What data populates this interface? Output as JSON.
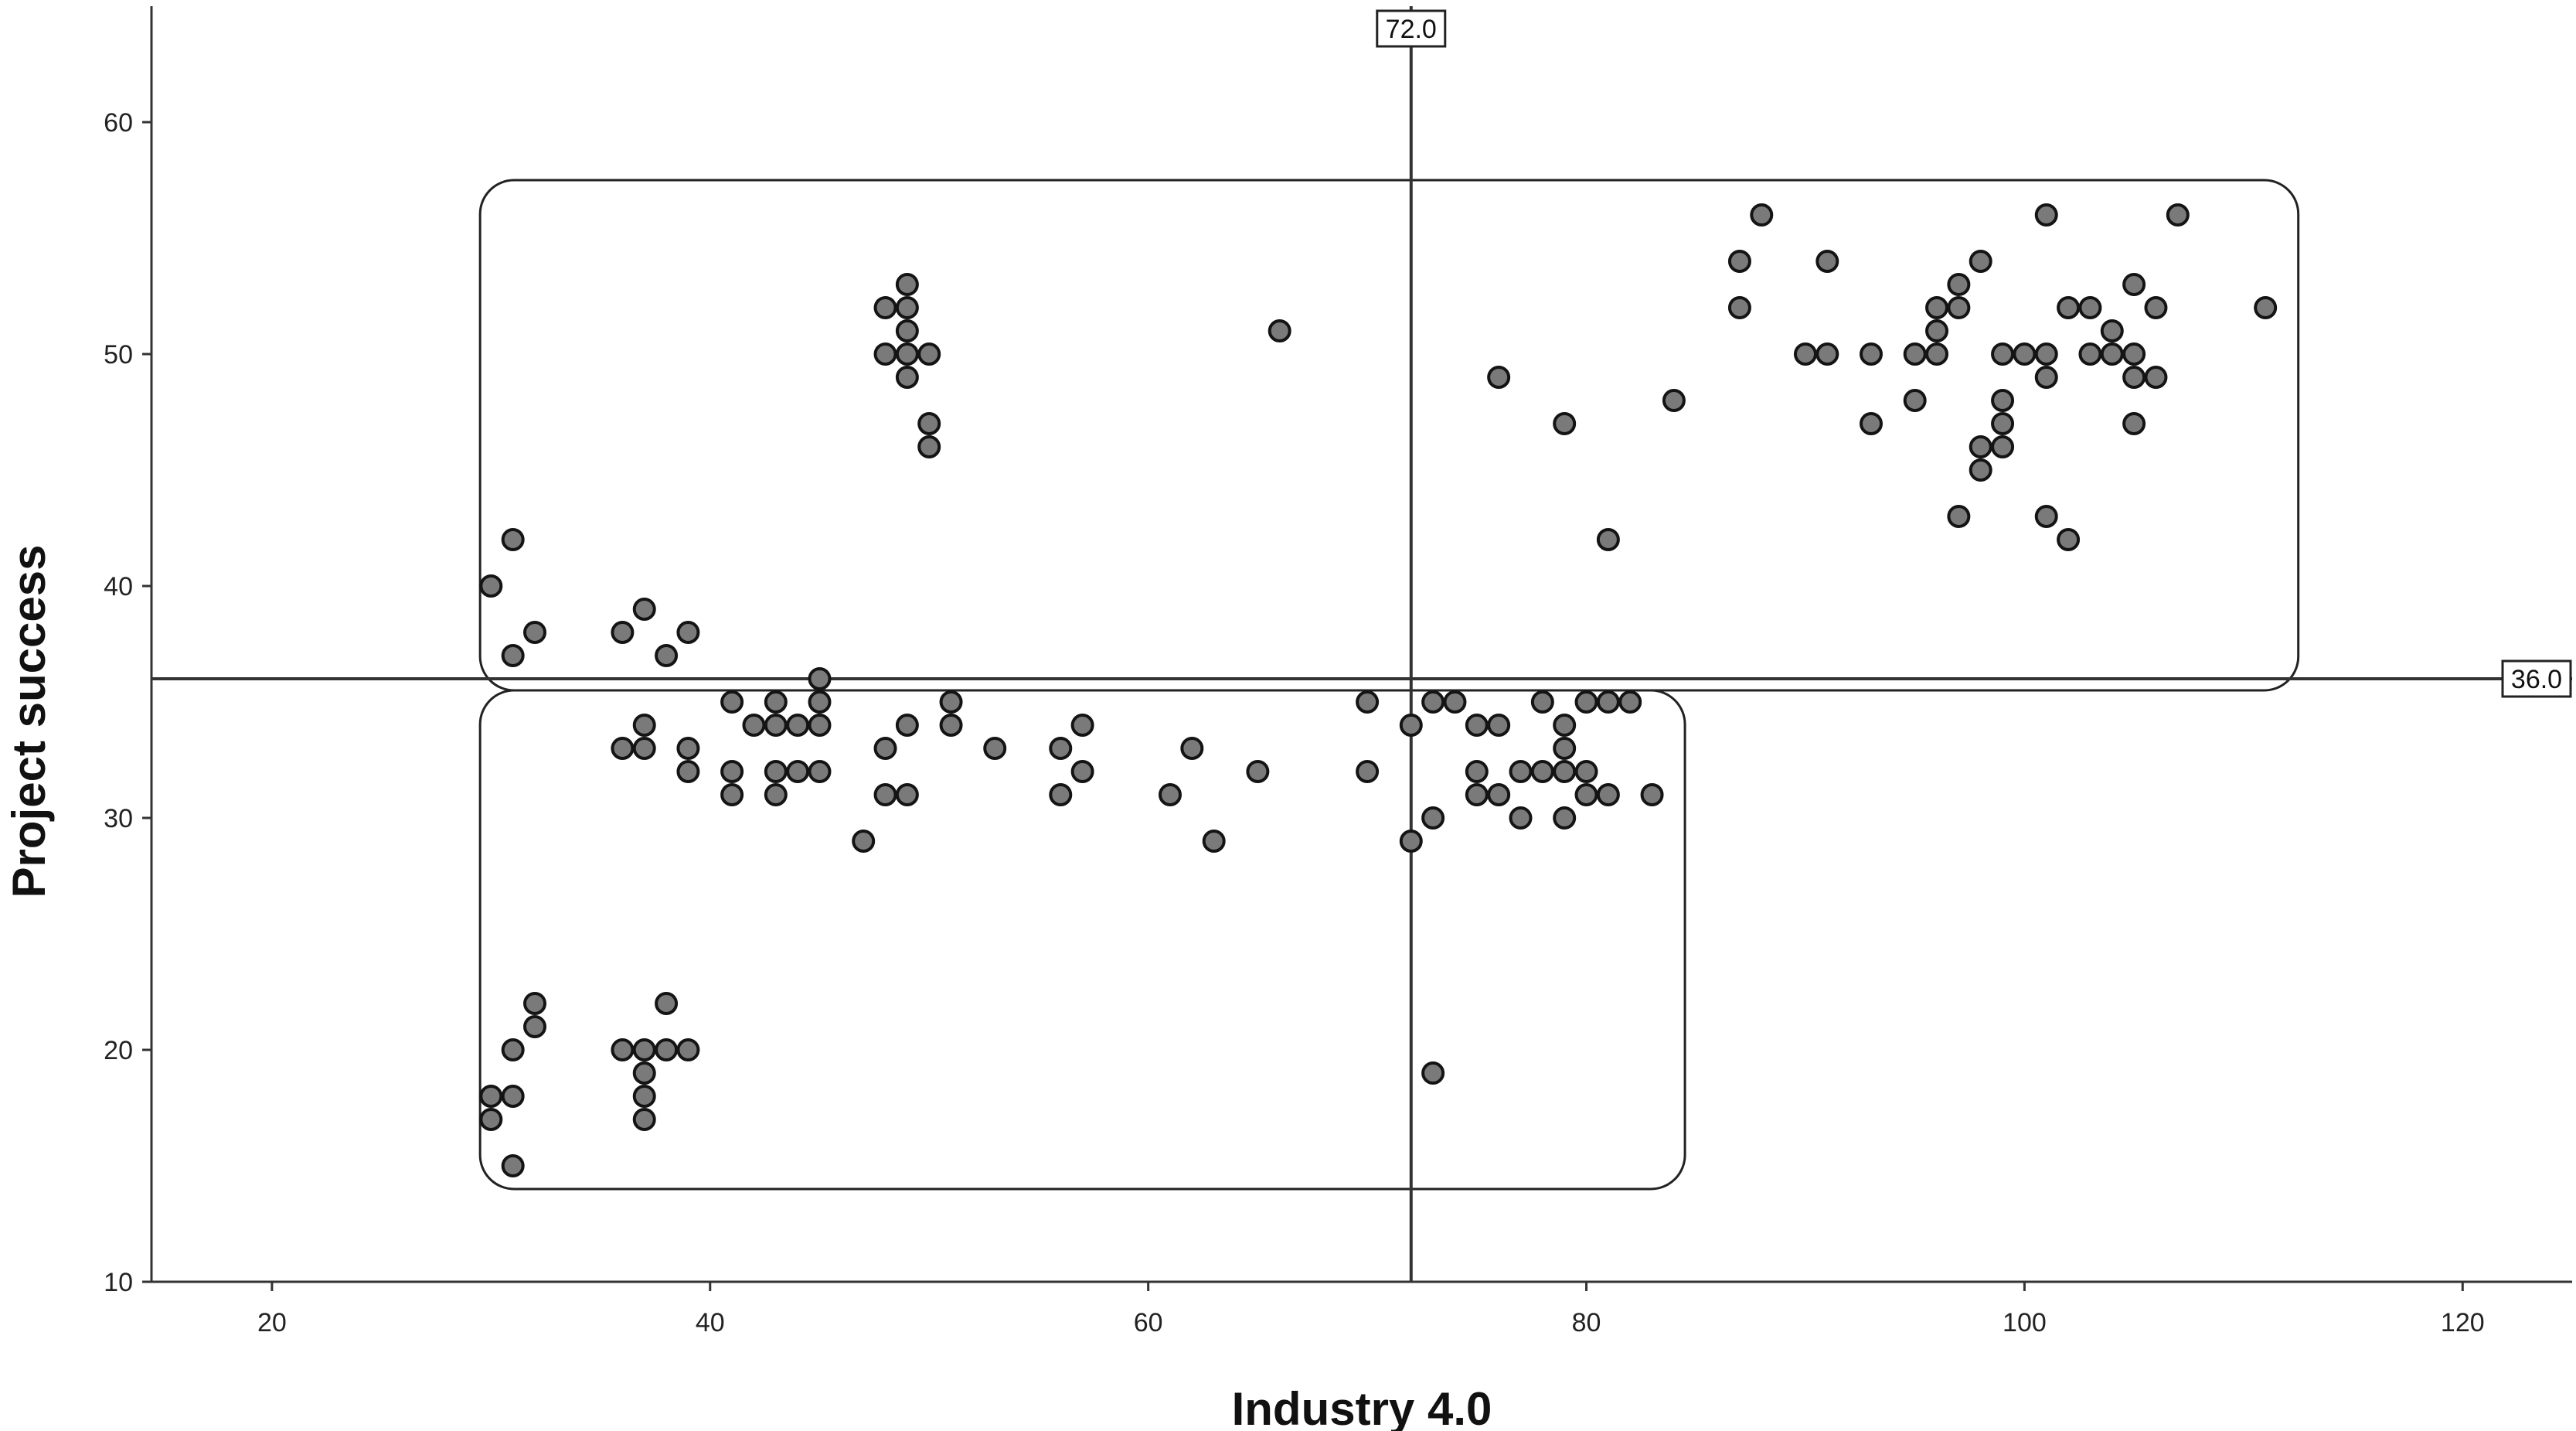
{
  "chart_data": {
    "type": "scatter",
    "xlabel": "Industry 4.0",
    "ylabel": "Project success",
    "xlim": [
      14.5,
      125
    ],
    "ylim": [
      10,
      65
    ],
    "x_ticks": [
      20,
      40,
      60,
      80,
      100,
      120
    ],
    "y_ticks": [
      10,
      20,
      30,
      40,
      50,
      60
    ],
    "grid": false,
    "colors": {
      "point_fill": "#7a7a7a",
      "point_stroke": "#141414",
      "lines": "#333333"
    },
    "reference_lines": [
      {
        "orientation": "vertical",
        "value": 72,
        "label": "72.0"
      },
      {
        "orientation": "horizontal",
        "value": 36,
        "label": "36.0"
      }
    ],
    "regions": [
      {
        "x": [
          29.5,
          112.5
        ],
        "y": [
          35.5,
          57.5
        ]
      },
      {
        "x": [
          29.5,
          84.5
        ],
        "y": [
          14.0,
          35.5
        ]
      }
    ],
    "points": [
      [
        30,
        40
      ],
      [
        31,
        42
      ],
      [
        31,
        37
      ],
      [
        32,
        38
      ],
      [
        36,
        38
      ],
      [
        37,
        39
      ],
      [
        38,
        37
      ],
      [
        39,
        38
      ],
      [
        48,
        52
      ],
      [
        49,
        53
      ],
      [
        49,
        52
      ],
      [
        49,
        51
      ],
      [
        48,
        50
      ],
      [
        49,
        50
      ],
      [
        50,
        50
      ],
      [
        49,
        49
      ],
      [
        50,
        47
      ],
      [
        50,
        46
      ],
      [
        66,
        51
      ],
      [
        76,
        49
      ],
      [
        79,
        47
      ],
      [
        81,
        42
      ],
      [
        84,
        48
      ],
      [
        87,
        54
      ],
      [
        87,
        52
      ],
      [
        88,
        56
      ],
      [
        90,
        50
      ],
      [
        91,
        54
      ],
      [
        91,
        50
      ],
      [
        93,
        50
      ],
      [
        93,
        47
      ],
      [
        95,
        50
      ],
      [
        95,
        48
      ],
      [
        96,
        52
      ],
      [
        96,
        51
      ],
      [
        96,
        50
      ],
      [
        97,
        53
      ],
      [
        97,
        52
      ],
      [
        97,
        43
      ],
      [
        98,
        54
      ],
      [
        98,
        46
      ],
      [
        98,
        45
      ],
      [
        99,
        50
      ],
      [
        99,
        48
      ],
      [
        99,
        47
      ],
      [
        99,
        46
      ],
      [
        100,
        50
      ],
      [
        101,
        56
      ],
      [
        101,
        50
      ],
      [
        101,
        49
      ],
      [
        101,
        43
      ],
      [
        102,
        52
      ],
      [
        102,
        42
      ],
      [
        103,
        52
      ],
      [
        103,
        50
      ],
      [
        104,
        51
      ],
      [
        104,
        50
      ],
      [
        105,
        53
      ],
      [
        105,
        50
      ],
      [
        105,
        49
      ],
      [
        105,
        47
      ],
      [
        106,
        52
      ],
      [
        106,
        49
      ],
      [
        107,
        56
      ],
      [
        111,
        52
      ],
      [
        36,
        33
      ],
      [
        37,
        34
      ],
      [
        37,
        33
      ],
      [
        39,
        33
      ],
      [
        39,
        32
      ],
      [
        41,
        35
      ],
      [
        41,
        32
      ],
      [
        41,
        31
      ],
      [
        42,
        34
      ],
      [
        43,
        35
      ],
      [
        43,
        34
      ],
      [
        43,
        32
      ],
      [
        43,
        31
      ],
      [
        44,
        34
      ],
      [
        44,
        32
      ],
      [
        45,
        36
      ],
      [
        45,
        35
      ],
      [
        45,
        34
      ],
      [
        45,
        32
      ],
      [
        47,
        29
      ],
      [
        48,
        33
      ],
      [
        48,
        31
      ],
      [
        49,
        34
      ],
      [
        49,
        31
      ],
      [
        51,
        35
      ],
      [
        51,
        34
      ],
      [
        53,
        33
      ],
      [
        56,
        33
      ],
      [
        56,
        31
      ],
      [
        57,
        34
      ],
      [
        57,
        32
      ],
      [
        61,
        31
      ],
      [
        62,
        33
      ],
      [
        63,
        29
      ],
      [
        65,
        32
      ],
      [
        70,
        35
      ],
      [
        70,
        32
      ],
      [
        72,
        34
      ],
      [
        72,
        29
      ],
      [
        73,
        35
      ],
      [
        73,
        30
      ],
      [
        74,
        35
      ],
      [
        75,
        34
      ],
      [
        75,
        32
      ],
      [
        75,
        31
      ],
      [
        76,
        34
      ],
      [
        76,
        31
      ],
      [
        77,
        32
      ],
      [
        77,
        30
      ],
      [
        78,
        35
      ],
      [
        78,
        32
      ],
      [
        79,
        34
      ],
      [
        79,
        33
      ],
      [
        79,
        32
      ],
      [
        79,
        30
      ],
      [
        80,
        35
      ],
      [
        80,
        32
      ],
      [
        80,
        31
      ],
      [
        81,
        35
      ],
      [
        81,
        31
      ],
      [
        82,
        35
      ],
      [
        83,
        31
      ],
      [
        30,
        18
      ],
      [
        30,
        17
      ],
      [
        31,
        20
      ],
      [
        31,
        18
      ],
      [
        31,
        15
      ],
      [
        32,
        22
      ],
      [
        32,
        21
      ],
      [
        36,
        20
      ],
      [
        37,
        20
      ],
      [
        37,
        19
      ],
      [
        37,
        18
      ],
      [
        37,
        17
      ],
      [
        38,
        22
      ],
      [
        38,
        20
      ],
      [
        39,
        20
      ],
      [
        73,
        19
      ]
    ]
  }
}
